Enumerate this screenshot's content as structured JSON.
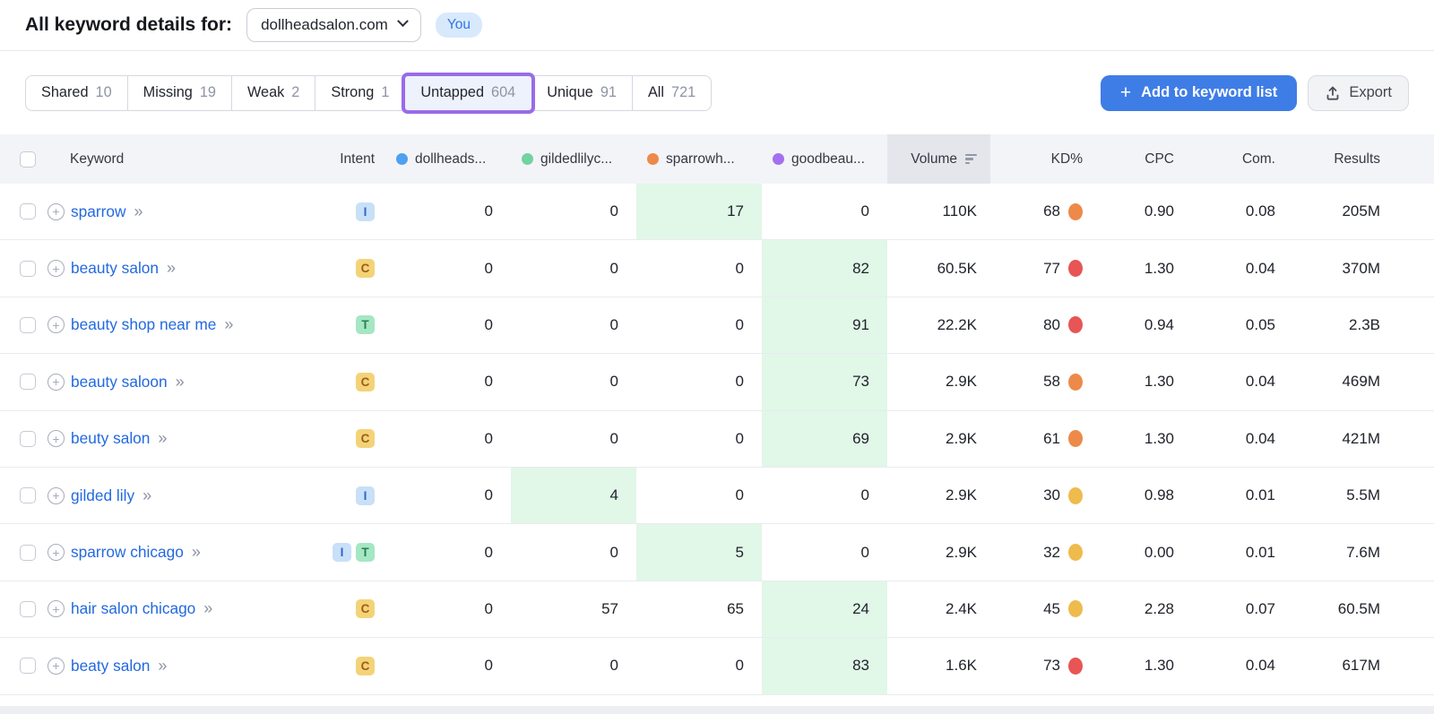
{
  "header": {
    "title": "All keyword details for:",
    "domain": "dollheadsalon.com",
    "you_badge": "You"
  },
  "tabs": {
    "active": "Untapped",
    "items": [
      {
        "label": "Shared",
        "count": "10"
      },
      {
        "label": "Missing",
        "count": "19"
      },
      {
        "label": "Weak",
        "count": "2"
      },
      {
        "label": "Strong",
        "count": "1"
      },
      {
        "label": "Untapped",
        "count": "604"
      },
      {
        "label": "Unique",
        "count": "91"
      },
      {
        "label": "All",
        "count": "721"
      }
    ]
  },
  "actions": {
    "add_to_list": "Add to keyword list",
    "export": "Export"
  },
  "colors": {
    "accent_blue": "#3f7de6",
    "active_tab_border": "#9a6be8",
    "link_blue": "#2269e0",
    "you_bg": "#d8e9fc",
    "you_fg": "#2f77e0"
  },
  "table": {
    "headers": {
      "keyword": "Keyword",
      "intent": "Intent",
      "volume": "Volume",
      "kd": "KD%",
      "cpc": "CPC",
      "com": "Com.",
      "results": "Results"
    },
    "sort_column": "Volume",
    "competitors": [
      {
        "name": "dollheads...",
        "color": "#4ea1f0"
      },
      {
        "name": "gildedlilyc...",
        "color": "#72d2a2"
      },
      {
        "name": "sparrowh...",
        "color": "#ed8a4a"
      },
      {
        "name": "goodbeau...",
        "color": "#a570ef"
      }
    ],
    "intent_colors": {
      "I": {
        "bg": "#c8e0f8",
        "fg": "#2f66c8"
      },
      "C": {
        "bg": "#f4d378",
        "fg": "#9c5f17"
      },
      "T": {
        "bg": "#a5e7c3",
        "fg": "#2a7d55"
      }
    },
    "kd_colors": {
      "orange": "#ed8a4a",
      "red": "#e85555",
      "yellow": "#eebb4d"
    },
    "highlight_color": "#e1f7e8",
    "rows": [
      {
        "keyword": "sparrow",
        "intents": [
          "I"
        ],
        "positions": [
          "0",
          "0",
          "17",
          "0"
        ],
        "highlight": 2,
        "volume": "110K",
        "kd": "68",
        "kd_level": "orange",
        "cpc": "0.90",
        "com": "0.08",
        "results": "205M"
      },
      {
        "keyword": "beauty salon",
        "intents": [
          "C"
        ],
        "positions": [
          "0",
          "0",
          "0",
          "82"
        ],
        "highlight": 3,
        "volume": "60.5K",
        "kd": "77",
        "kd_level": "red",
        "cpc": "1.30",
        "com": "0.04",
        "results": "370M"
      },
      {
        "keyword": "beauty shop near me",
        "intents": [
          "T"
        ],
        "positions": [
          "0",
          "0",
          "0",
          "91"
        ],
        "highlight": 3,
        "volume": "22.2K",
        "kd": "80",
        "kd_level": "red",
        "cpc": "0.94",
        "com": "0.05",
        "results": "2.3B"
      },
      {
        "keyword": "beauty saloon",
        "intents": [
          "C"
        ],
        "positions": [
          "0",
          "0",
          "0",
          "73"
        ],
        "highlight": 3,
        "volume": "2.9K",
        "kd": "58",
        "kd_level": "orange",
        "cpc": "1.30",
        "com": "0.04",
        "results": "469M"
      },
      {
        "keyword": "beuty salon",
        "intents": [
          "C"
        ],
        "positions": [
          "0",
          "0",
          "0",
          "69"
        ],
        "highlight": 3,
        "volume": "2.9K",
        "kd": "61",
        "kd_level": "orange",
        "cpc": "1.30",
        "com": "0.04",
        "results": "421M"
      },
      {
        "keyword": "gilded lily",
        "intents": [
          "I"
        ],
        "positions": [
          "0",
          "4",
          "0",
          "0"
        ],
        "highlight": 1,
        "volume": "2.9K",
        "kd": "30",
        "kd_level": "yellow",
        "cpc": "0.98",
        "com": "0.01",
        "results": "5.5M"
      },
      {
        "keyword": "sparrow chicago",
        "intents": [
          "I",
          "T"
        ],
        "positions": [
          "0",
          "0",
          "5",
          "0"
        ],
        "highlight": 2,
        "volume": "2.9K",
        "kd": "32",
        "kd_level": "yellow",
        "cpc": "0.00",
        "com": "0.01",
        "results": "7.6M"
      },
      {
        "keyword": "hair salon chicago",
        "intents": [
          "C"
        ],
        "positions": [
          "0",
          "57",
          "65",
          "24"
        ],
        "highlight": 3,
        "volume": "2.4K",
        "kd": "45",
        "kd_level": "yellow",
        "cpc": "2.28",
        "com": "0.07",
        "results": "60.5M"
      },
      {
        "keyword": "beaty salon",
        "intents": [
          "C"
        ],
        "positions": [
          "0",
          "0",
          "0",
          "83"
        ],
        "highlight": 3,
        "volume": "1.6K",
        "kd": "73",
        "kd_level": "red",
        "cpc": "1.30",
        "com": "0.04",
        "results": "617M"
      }
    ]
  }
}
